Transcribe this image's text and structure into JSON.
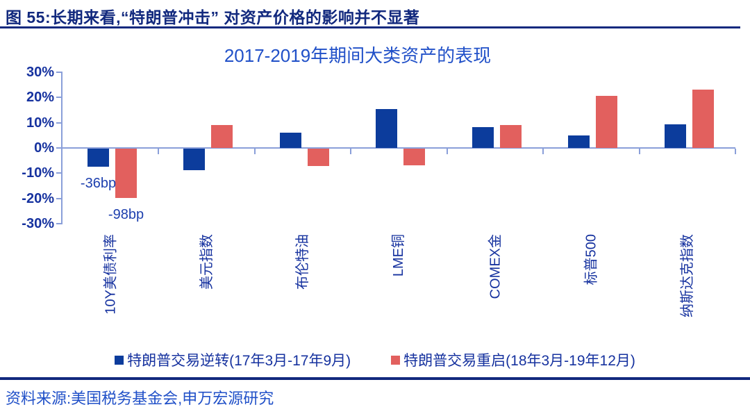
{
  "page": {
    "figure_title": "图 55:长期来看,“特朗普冲击” 对资产价格的影响并不显著",
    "source": "资料来源:美国税务基金会,申万宏源研究"
  },
  "colors": {
    "header_navy": "#12297E",
    "chart_title_blue": "#2050C8",
    "label_blue": "#16329F",
    "annotation_blue": "#1D3FAE",
    "axis_light_blue": "#8A9FD9",
    "bar_blue": "#0C3C9C",
    "bar_red": "#E2605E"
  },
  "chart_data": {
    "type": "bar",
    "title": "2017-2019年期间大类资产的表现",
    "categories": [
      "10Y美债利率",
      "美元指数",
      "布伦特油",
      "LME铜",
      "COMEX金",
      "标普500",
      "纳斯达克指数"
    ],
    "series": [
      {
        "name": "特朗普交易逆转(17年3月-17年9月)",
        "color": "#0C3C9C",
        "values": [
          -7.2,
          -8.5,
          6,
          15.5,
          8.3,
          5,
          9.3
        ]
      },
      {
        "name": "特朗普交易重启(18年3月-19年12月)",
        "color": "#E2605E",
        "values": [
          -19.6,
          9.2,
          -7,
          -6.5,
          9.2,
          20.5,
          23
        ]
      }
    ],
    "annotations": [
      {
        "text": "-36bp",
        "series": 0,
        "group": 0
      },
      {
        "text": "-98bp",
        "series": 1,
        "group": 0
      }
    ],
    "y_axis": {
      "ticks": [
        "30%",
        "20%",
        "10%",
        "0%",
        "-10%",
        "-20%",
        "-30%"
      ],
      "tick_values": [
        30,
        20,
        10,
        0,
        -10,
        -20,
        -30
      ],
      "min": -30,
      "max": 30,
      "unit": "%"
    },
    "grid": false,
    "legend_position": "bottom"
  }
}
